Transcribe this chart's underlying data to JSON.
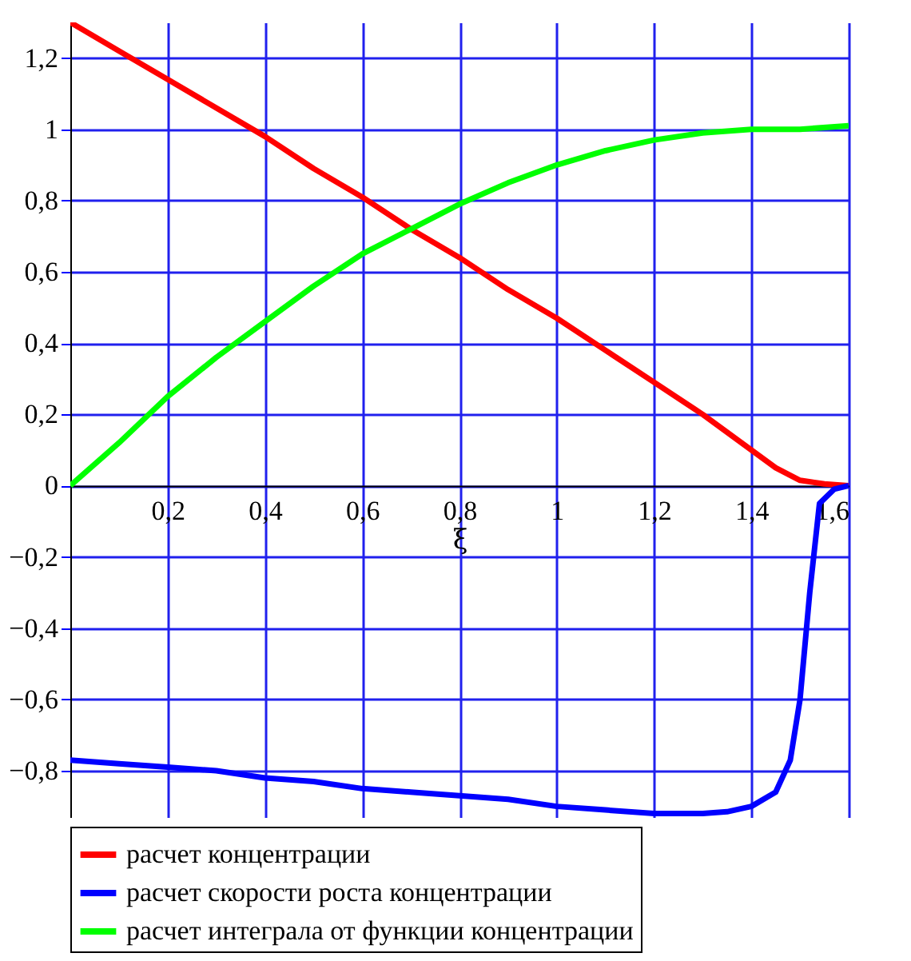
{
  "chart_data": {
    "type": "line",
    "xlabel": "ξ",
    "xlim": [
      0,
      1.6
    ],
    "ylim": [
      -0.93,
      1.3
    ],
    "xticks": [
      {
        "value": 0.2,
        "label": "0,2"
      },
      {
        "value": 0.4,
        "label": "0,4"
      },
      {
        "value": 0.6,
        "label": "0,6"
      },
      {
        "value": 0.8,
        "label": "0,8"
      },
      1,
      {
        "value": 1.2,
        "label": "1,2"
      },
      {
        "value": 1.4,
        "label": "1,4"
      },
      {
        "value": 1.6,
        "label": "1,6"
      }
    ],
    "yticks": [
      {
        "value": -0.8,
        "label": "−0,8"
      },
      {
        "value": -0.6,
        "label": "−0,6"
      },
      {
        "value": -0.4,
        "label": "−0,4"
      },
      {
        "value": -0.2,
        "label": "−0,2"
      },
      0,
      {
        "value": 0.2,
        "label": "0,2"
      },
      {
        "value": 0.4,
        "label": "0,4"
      },
      {
        "value": 0.6,
        "label": "0,6"
      },
      {
        "value": 0.8,
        "label": "0,8"
      },
      1,
      {
        "value": 1.2,
        "label": "1,2"
      }
    ],
    "grid": true,
    "legend": "bottom",
    "marker": "none",
    "line_style": "solid",
    "x": [
      0,
      0.1,
      0.2,
      0.3,
      0.4,
      0.5,
      0.6,
      0.7,
      0.8,
      0.9,
      1.0,
      1.1,
      1.2,
      1.3,
      1.4,
      1.45,
      1.5,
      1.55,
      1.6
    ],
    "series": [
      {
        "name": " расчет концентрации",
        "color": "#ff0000",
        "values": [
          1.3,
          1.22,
          1.14,
          1.06,
          0.98,
          0.89,
          0.81,
          0.72,
          0.64,
          0.55,
          0.47,
          0.38,
          0.29,
          0.2,
          0.1,
          0.05,
          0.015,
          0.005,
          0
        ]
      },
      {
        "name": "расчет скорости роста концентрации",
        "color": "#0000ff",
        "x": [
          0,
          0.1,
          0.2,
          0.3,
          0.4,
          0.5,
          0.6,
          0.7,
          0.8,
          0.9,
          1.0,
          1.1,
          1.2,
          1.3,
          1.35,
          1.4,
          1.45,
          1.48,
          1.5,
          1.52,
          1.54,
          1.57,
          1.6
        ],
        "values": [
          -0.77,
          -0.78,
          -0.79,
          -0.8,
          -0.82,
          -0.83,
          -0.85,
          -0.86,
          -0.87,
          -0.88,
          -0.9,
          -0.91,
          -0.92,
          -0.92,
          -0.915,
          -0.9,
          -0.86,
          -0.77,
          -0.6,
          -0.3,
          -0.05,
          -0.01,
          0
        ]
      },
      {
        "name": " расчет интеграла от функции концентрации",
        "color": "#00ff00",
        "x": [
          0,
          0.1,
          0.2,
          0.3,
          0.4,
          0.5,
          0.6,
          0.7,
          0.8,
          0.9,
          1.0,
          1.1,
          1.2,
          1.3,
          1.4,
          1.5,
          1.6
        ],
        "values": [
          0,
          0.12,
          0.25,
          0.36,
          0.46,
          0.56,
          0.65,
          0.72,
          0.79,
          0.85,
          0.9,
          0.94,
          0.97,
          0.99,
          1.0,
          1.0,
          1.01
        ]
      }
    ]
  }
}
